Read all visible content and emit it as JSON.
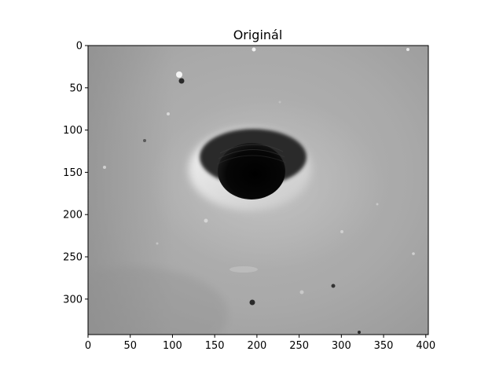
{
  "figure": {
    "title": "Originál"
  },
  "image": {
    "subject": "grayscale SEM-style micrograph of a surface with a dark circular hole",
    "colormap": "gray",
    "colors": {
      "background_gray": "#a9a9a9",
      "hole": "#050505",
      "rim_highlight": "#f2f2f2",
      "axes_frame": "#000000"
    }
  },
  "axes": {
    "x": {
      "range": [
        0,
        403
      ],
      "ticks": [
        0,
        50,
        100,
        150,
        200,
        250,
        300,
        350,
        400
      ]
    },
    "y": {
      "range": [
        0,
        342
      ],
      "inverted": true,
      "ticks": [
        0,
        50,
        100,
        150,
        200,
        250,
        300
      ]
    }
  }
}
